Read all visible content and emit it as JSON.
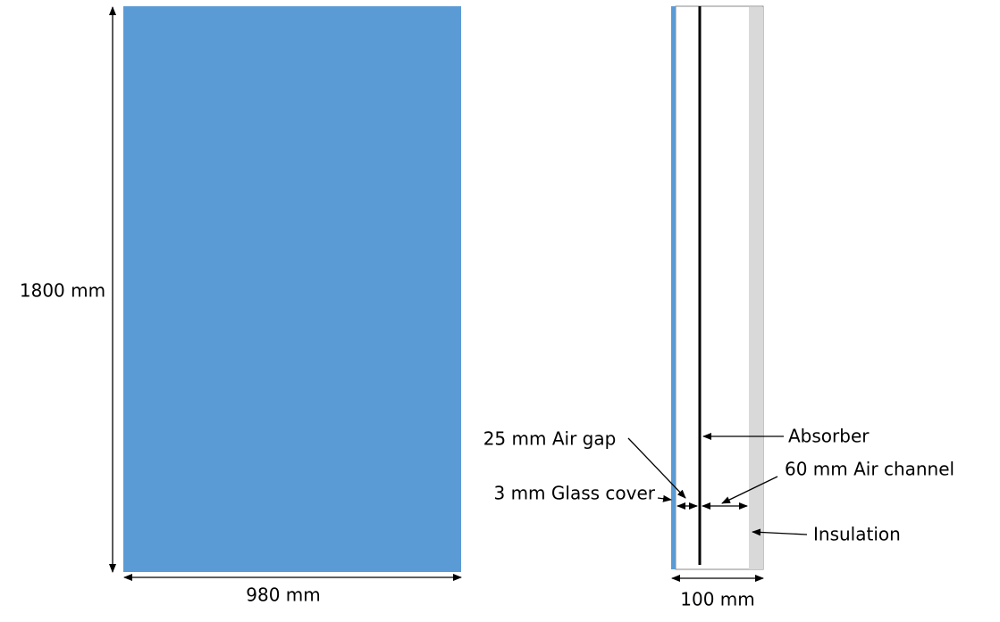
{
  "front_view": {
    "height_label": "1800 mm",
    "width_label": "980 mm"
  },
  "side_view": {
    "depth_label": "100 mm",
    "labels": {
      "air_gap": "25 mm Air gap",
      "glass_cover": "3 mm Glass cover",
      "absorber": "Absorber",
      "air_channel": "60 mm Air channel",
      "insulation": "Insulation"
    }
  }
}
